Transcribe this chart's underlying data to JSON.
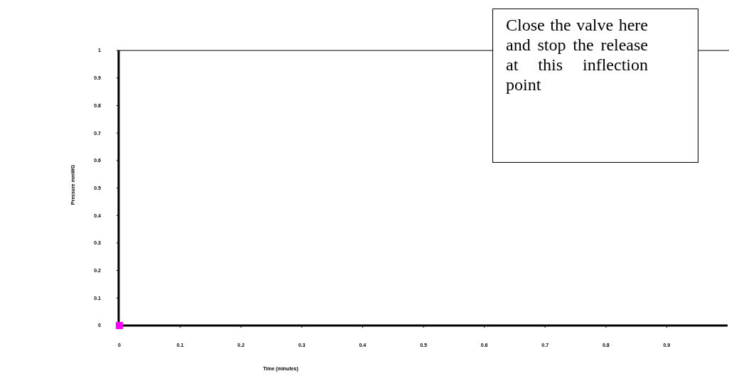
{
  "chart_data": {
    "type": "scatter",
    "xlabel": "Time (minutes)",
    "ylabel": "Pressure mmWG",
    "x": [
      0
    ],
    "series": [
      {
        "color": "#ff00ff",
        "values": [
          0
        ]
      }
    ],
    "marker": "square",
    "xlim": [
      0,
      1
    ],
    "xticks": [
      0,
      0.1,
      0.2,
      0.3,
      0.4,
      0.5,
      0.6,
      0.7,
      0.8,
      0.9
    ],
    "ylim": [
      0,
      1
    ],
    "yticks": [
      0,
      0.1,
      0.2,
      0.3,
      0.4,
      0.5,
      0.6,
      0.7,
      0.8,
      0.9,
      1
    ],
    "ref_lines": [
      {
        "axis": "y",
        "value": 1,
        "color": "#808080"
      }
    ],
    "annotations": [
      "Close the valve here and stop the release at this inflection point"
    ],
    "grid": false
  }
}
